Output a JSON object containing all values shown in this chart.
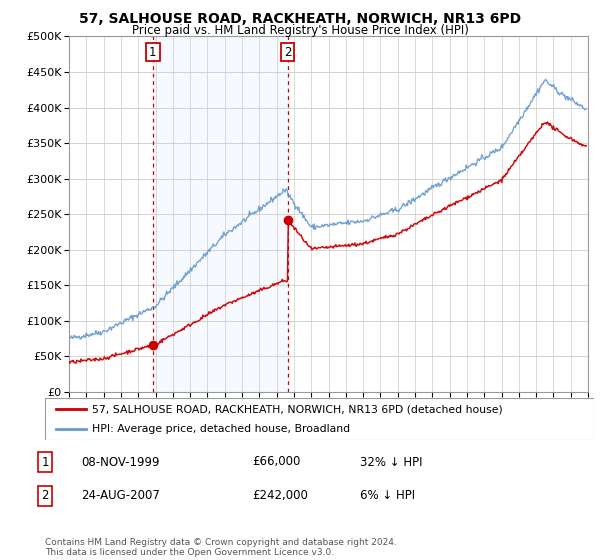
{
  "title": "57, SALHOUSE ROAD, RACKHEATH, NORWICH, NR13 6PD",
  "subtitle": "Price paid vs. HM Land Registry's House Price Index (HPI)",
  "legend_line1": "57, SALHOUSE ROAD, RACKHEATH, NORWICH, NR13 6PD (detached house)",
  "legend_line2": "HPI: Average price, detached house, Broadland",
  "annotation1_label": "1",
  "annotation1_date": "08-NOV-1999",
  "annotation1_price": "£66,000",
  "annotation1_hpi": "32% ↓ HPI",
  "annotation2_label": "2",
  "annotation2_date": "24-AUG-2007",
  "annotation2_price": "£242,000",
  "annotation2_hpi": "6% ↓ HPI",
  "footnote": "Contains HM Land Registry data © Crown copyright and database right 2024.\nThis data is licensed under the Open Government Licence v3.0.",
  "hpi_color": "#6699cc",
  "price_color": "#cc0000",
  "annotation_color": "#cc0000",
  "shade_color": "#ddeeff",
  "ylim": [
    0,
    500000
  ],
  "yticks": [
    0,
    50000,
    100000,
    150000,
    200000,
    250000,
    300000,
    350000,
    400000,
    450000,
    500000
  ],
  "sale1_x": 1999.85,
  "sale1_y": 66000,
  "sale2_x": 2007.64,
  "sale2_y": 242000,
  "xmin": 1995,
  "xmax": 2025
}
